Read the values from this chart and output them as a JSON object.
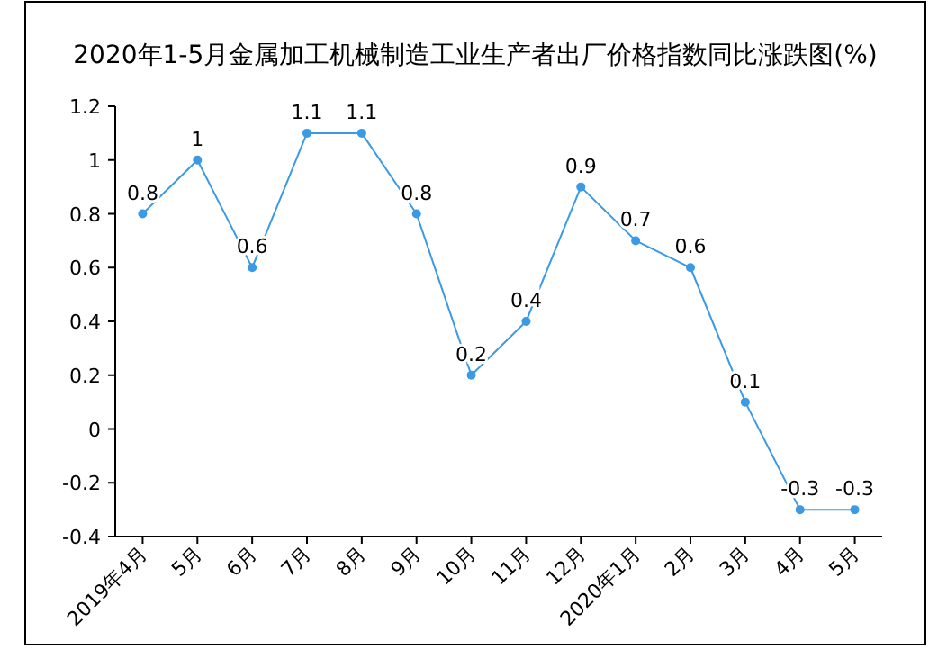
{
  "chart_data": {
    "type": "line",
    "title": "2020年1-5月金属加工机械制造工业生产者出厂价格指数同比涨跌图(%)",
    "categories": [
      "2019年4月",
      "5月",
      "6月",
      "7月",
      "8月",
      "9月",
      "10月",
      "11月",
      "12月",
      "2020年1月",
      "2月",
      "3月",
      "4月",
      "5月"
    ],
    "series": [
      {
        "color": "#3a9ae6",
        "values": [
          0.8,
          1,
          0.6,
          1.1,
          1.1,
          0.8,
          0.2,
          0.4,
          0.9,
          0.7,
          0.6,
          0.1,
          -0.3,
          -0.3
        ]
      }
    ],
    "ylim": [
      -0.4,
      1.2
    ],
    "yticks": [
      -0.4,
      -0.2,
      0,
      0.2,
      0.4,
      0.6,
      0.8,
      1,
      1.2
    ],
    "data_labels": true,
    "marker": "circle",
    "grid": false
  }
}
